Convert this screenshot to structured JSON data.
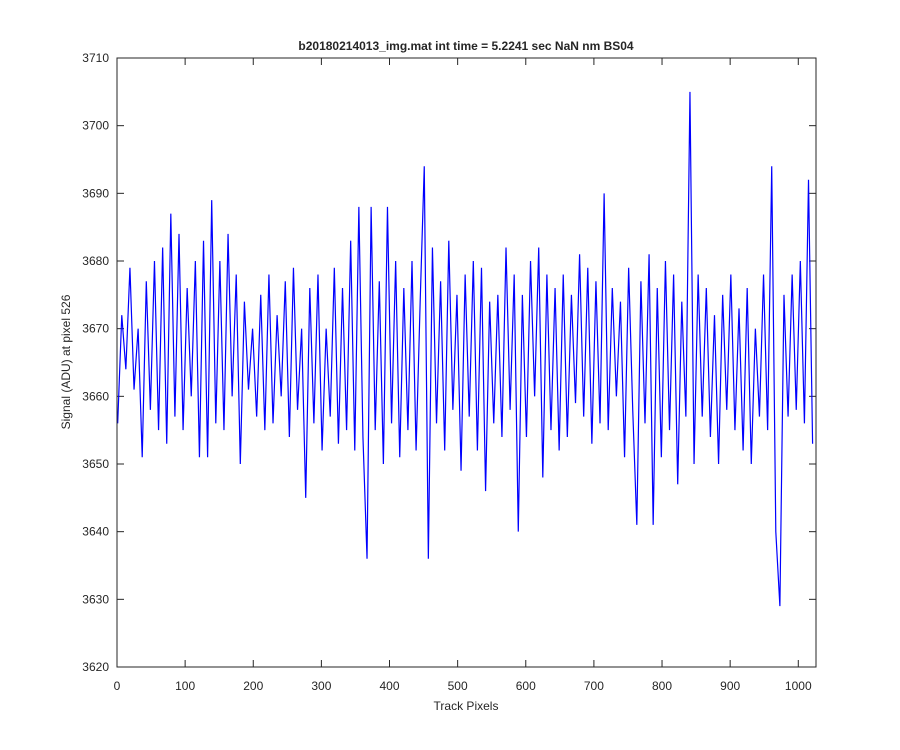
{
  "chart_data": {
    "type": "line",
    "title": "b20180214013_img.mat int time = 5.2241 sec  NaN nm BS04",
    "xlabel": "Track Pixels",
    "ylabel": "Signal (ADU) at pixel 526",
    "xlim": [
      0,
      1026
    ],
    "ylim": [
      3620,
      3710
    ],
    "xticks": [
      0,
      100,
      200,
      300,
      400,
      500,
      600,
      700,
      800,
      900,
      1000
    ],
    "yticks": [
      3620,
      3630,
      3640,
      3650,
      3660,
      3670,
      3680,
      3690,
      3700,
      3710
    ],
    "x": [
      1,
      7,
      13,
      19,
      25,
      31,
      37,
      43,
      49,
      55,
      61,
      67,
      73,
      79,
      85,
      91,
      97,
      103,
      109,
      115,
      121,
      127,
      133,
      139,
      145,
      151,
      157,
      163,
      169,
      175,
      181,
      187,
      193,
      199,
      205,
      211,
      217,
      223,
      229,
      235,
      241,
      247,
      253,
      259,
      265,
      271,
      277,
      283,
      289,
      295,
      301,
      307,
      313,
      319,
      325,
      331,
      337,
      343,
      349,
      355,
      361,
      367,
      373,
      379,
      385,
      391,
      397,
      403,
      409,
      415,
      421,
      427,
      433,
      439,
      445,
      451,
      457,
      463,
      469,
      475,
      481,
      487,
      493,
      499,
      505,
      511,
      517,
      523,
      529,
      535,
      541,
      547,
      553,
      559,
      565,
      571,
      577,
      583,
      589,
      595,
      601,
      607,
      613,
      619,
      625,
      631,
      637,
      643,
      649,
      655,
      661,
      667,
      673,
      679,
      685,
      691,
      697,
      703,
      709,
      715,
      721,
      727,
      733,
      739,
      745,
      751,
      757,
      763,
      769,
      775,
      781,
      787,
      793,
      799,
      805,
      811,
      817,
      823,
      829,
      835,
      841,
      847,
      853,
      859,
      865,
      871,
      877,
      883,
      889,
      895,
      901,
      907,
      913,
      919,
      925,
      931,
      937,
      943,
      949,
      955,
      961,
      967,
      973,
      979,
      985,
      991,
      997,
      1003,
      1009,
      1015,
      1021
    ],
    "series": [
      {
        "name": "signal",
        "color": "#0000ff",
        "values": [
          3656,
          3672,
          3664,
          3679,
          3661,
          3670,
          3651,
          3677,
          3658,
          3680,
          3655,
          3682,
          3653,
          3687,
          3657,
          3684,
          3655,
          3676,
          3660,
          3680,
          3651,
          3683,
          3651,
          3689,
          3656,
          3680,
          3655,
          3684,
          3660,
          3678,
          3650,
          3674,
          3661,
          3670,
          3657,
          3675,
          3655,
          3678,
          3656,
          3672,
          3660,
          3677,
          3654,
          3679,
          3658,
          3670,
          3645,
          3676,
          3656,
          3678,
          3652,
          3670,
          3657,
          3679,
          3653,
          3676,
          3655,
          3683,
          3652,
          3688,
          3654,
          3636,
          3688,
          3655,
          3677,
          3650,
          3688,
          3656,
          3680,
          3651,
          3676,
          3655,
          3680,
          3652,
          3674,
          3694,
          3636,
          3682,
          3656,
          3677,
          3652,
          3683,
          3658,
          3675,
          3649,
          3678,
          3657,
          3680,
          3652,
          3679,
          3646,
          3674,
          3656,
          3675,
          3654,
          3682,
          3658,
          3678,
          3640,
          3675,
          3654,
          3680,
          3660,
          3682,
          3648,
          3678,
          3655,
          3676,
          3652,
          3678,
          3654,
          3675,
          3659,
          3681,
          3657,
          3679,
          3653,
          3677,
          3656,
          3690,
          3655,
          3676,
          3660,
          3674,
          3651,
          3679,
          3658,
          3641,
          3677,
          3656,
          3681,
          3641,
          3676,
          3651,
          3680,
          3655,
          3678,
          3647,
          3674,
          3657,
          3705,
          3650,
          3678,
          3657,
          3676,
          3654,
          3672,
          3650,
          3675,
          3658,
          3678,
          3655,
          3673,
          3652,
          3676,
          3650,
          3670,
          3657,
          3678,
          3655,
          3694,
          3640,
          3629,
          3675,
          3657,
          3678,
          3658,
          3680,
          3656,
          3692,
          3653
        ]
      }
    ]
  }
}
